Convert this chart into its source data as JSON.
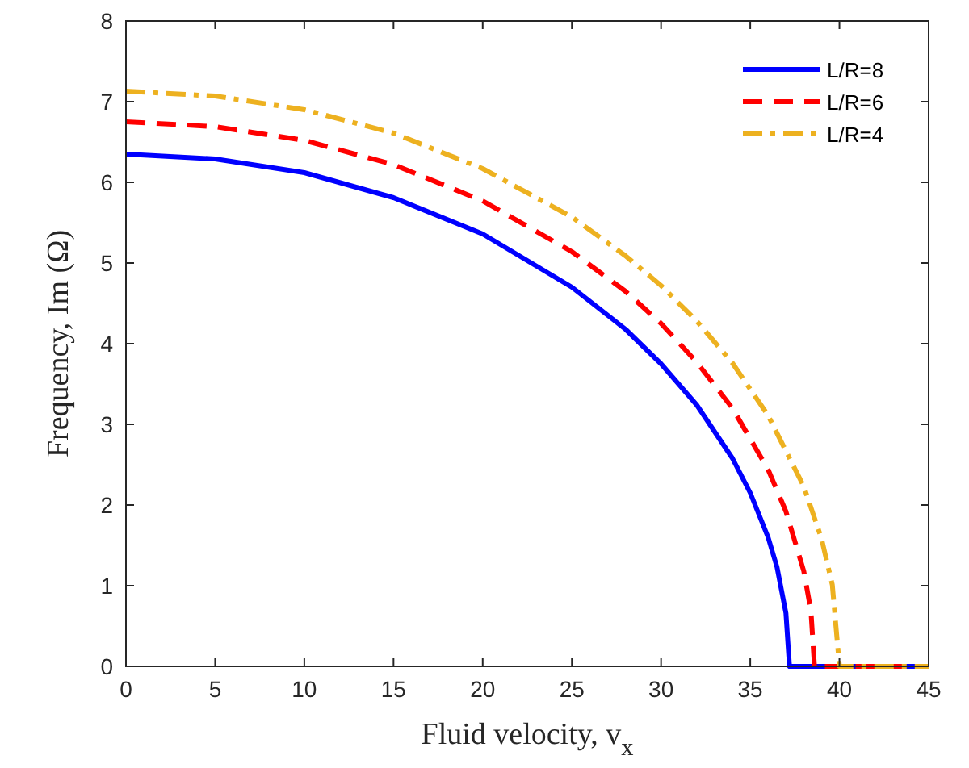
{
  "chart_data": {
    "type": "line",
    "xlabel": "Fluid velocity, v$_{x}$",
    "ylabel": "Frequency, Im (Ω)",
    "xlim": [
      0,
      45
    ],
    "ylim": [
      0,
      8
    ],
    "xticks": [
      0,
      5,
      10,
      15,
      20,
      25,
      30,
      35,
      40,
      45
    ],
    "yticks": [
      0,
      1,
      2,
      3,
      4,
      5,
      6,
      7,
      8
    ],
    "grid": false,
    "legend": "top right",
    "marker": "none",
    "series": [
      {
        "name": "L/R=8",
        "color": "#0000ff",
        "line_style": "solid",
        "x": [
          0,
          5,
          10,
          15,
          20,
          25,
          28,
          30,
          32,
          34,
          35,
          36,
          36.5,
          37,
          37.2,
          45
        ],
        "values": [
          6.35,
          6.29,
          6.12,
          5.81,
          5.36,
          4.7,
          4.18,
          3.75,
          3.24,
          2.58,
          2.15,
          1.6,
          1.23,
          0.66,
          0,
          0
        ]
      },
      {
        "name": "L/R=6",
        "color": "#ff0000",
        "line_style": "dashed",
        "x": [
          0,
          5,
          10,
          15,
          20,
          25,
          28,
          30,
          32,
          34,
          36,
          37,
          38,
          38.4,
          38.6,
          45
        ],
        "values": [
          6.75,
          6.69,
          6.52,
          6.22,
          5.77,
          5.14,
          4.65,
          4.25,
          3.77,
          3.2,
          2.44,
          1.92,
          1.18,
          0.69,
          0,
          0
        ]
      },
      {
        "name": "L/R=4",
        "color": "#edb120",
        "line_style": "dashdot",
        "x": [
          0,
          5,
          10,
          15,
          20,
          25,
          28,
          30,
          32,
          34,
          36,
          38,
          39,
          39.6,
          40,
          45
        ],
        "values": [
          7.13,
          7.07,
          6.9,
          6.61,
          6.17,
          5.57,
          5.09,
          4.72,
          4.28,
          3.76,
          3.11,
          2.23,
          1.58,
          1.01,
          0,
          0
        ]
      }
    ]
  }
}
